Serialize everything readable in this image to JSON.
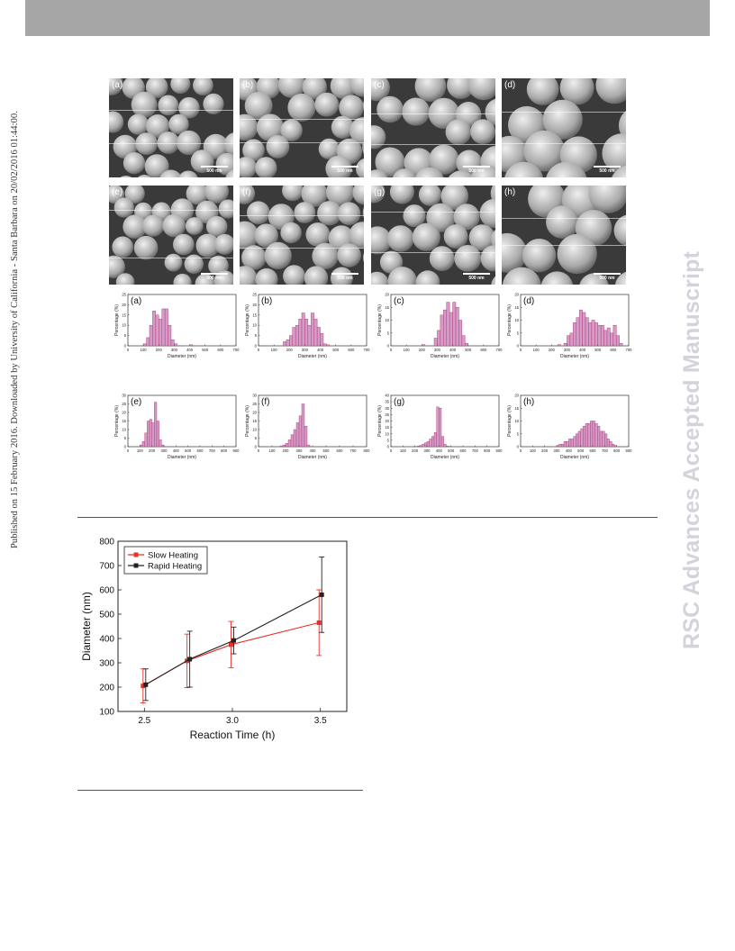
{
  "page": {
    "side_text": "Published on 15 February 2016. Downloaded by University of California - Santa Barbara on 20/02/2016 01:44:00.",
    "watermark": "RSC Advances Accepted Manuscript"
  },
  "sem_panels": [
    {
      "label": "(a)",
      "scale": "500 nm"
    },
    {
      "label": "(b)",
      "scale": "500 nm"
    },
    {
      "label": "(c)",
      "scale": "500 nm"
    },
    {
      "label": "(d)",
      "scale": "500 nm"
    },
    {
      "label": "(e)",
      "scale": "500 nm"
    },
    {
      "label": "(f)",
      "scale": "500 nm"
    },
    {
      "label": "(g)",
      "scale": "500 nm"
    },
    {
      "label": "(h)",
      "scale": "500 nm"
    }
  ],
  "colors": {
    "hist_fill": "#d49ac8",
    "hist_edge": "#b0306a",
    "slow": "#e8312b",
    "rapid": "#222222"
  },
  "chart_data": [
    {
      "type": "bar",
      "panel": "(a)",
      "xlabel": "Diameter (nm)",
      "ylabel": "Percentage (%)",
      "xlim": [
        0,
        700
      ],
      "ylim": [
        0,
        25
      ],
      "xticks": [
        0,
        100,
        200,
        300,
        400,
        500,
        600,
        700
      ],
      "yticks": [
        0,
        5,
        10,
        15,
        20,
        25
      ],
      "bin_width": 20,
      "x": [
        110,
        130,
        150,
        170,
        190,
        210,
        230,
        250,
        270,
        290,
        310,
        410
      ],
      "values": [
        1,
        4,
        10,
        17,
        15,
        13,
        18,
        18,
        10,
        3,
        1,
        0.5
      ]
    },
    {
      "type": "bar",
      "panel": "(b)",
      "xlabel": "Diameter (nm)",
      "ylabel": "Percentage (%)",
      "xlim": [
        0,
        700
      ],
      "ylim": [
        0,
        25
      ],
      "xticks": [
        0,
        100,
        200,
        300,
        400,
        500,
        600,
        700
      ],
      "yticks": [
        0,
        5,
        10,
        15,
        20,
        25
      ],
      "bin_width": 20,
      "x": [
        170,
        190,
        210,
        230,
        250,
        270,
        290,
        310,
        330,
        350,
        370,
        390,
        410,
        430,
        450
      ],
      "values": [
        2,
        3,
        5,
        9,
        10,
        13,
        16,
        13,
        10,
        16,
        13,
        9,
        6,
        1,
        0.5
      ]
    },
    {
      "type": "bar",
      "panel": "(c)",
      "xlabel": "Diameter (nm)",
      "ylabel": "Percentage (%)",
      "xlim": [
        0,
        700
      ],
      "ylim": [
        0,
        20
      ],
      "xticks": [
        0,
        100,
        200,
        300,
        400,
        500,
        600,
        700
      ],
      "yticks": [
        0,
        5,
        10,
        15,
        20
      ],
      "bin_width": 20,
      "x": [
        210,
        290,
        310,
        330,
        350,
        370,
        390,
        410,
        430,
        450,
        470,
        490
      ],
      "values": [
        0.5,
        3,
        6,
        12,
        14,
        17,
        13,
        17,
        15,
        10,
        4,
        1
      ]
    },
    {
      "type": "bar",
      "panel": "(d)",
      "xlabel": "Diameter (nm)",
      "ylabel": "Percentage (%)",
      "xlim": [
        0,
        700
      ],
      "ylim": [
        0,
        20
      ],
      "xticks": [
        0,
        100,
        200,
        300,
        400,
        500,
        600,
        700
      ],
      "yticks": [
        0,
        5,
        10,
        15,
        20
      ],
      "bin_width": 20,
      "x": [
        250,
        290,
        310,
        330,
        350,
        370,
        390,
        410,
        430,
        450,
        470,
        490,
        510,
        530,
        550,
        570,
        590,
        610,
        630,
        650
      ],
      "values": [
        0.5,
        1,
        4,
        5,
        9,
        11,
        14,
        13,
        11,
        9,
        10,
        9,
        8,
        8,
        6,
        7,
        5,
        8,
        4,
        1
      ]
    },
    {
      "type": "bar",
      "panel": "(e)",
      "xlabel": "Diameter (nm)",
      "ylabel": "Percentage (%)",
      "xlim": [
        0,
        900
      ],
      "ylim": [
        0,
        30
      ],
      "xticks": [
        0,
        100,
        200,
        300,
        400,
        500,
        600,
        700,
        800,
        900
      ],
      "yticks": [
        0,
        5,
        10,
        15,
        20,
        25,
        30
      ],
      "bin_width": 20,
      "x": [
        110,
        130,
        150,
        170,
        190,
        210,
        230,
        250,
        270,
        290
      ],
      "values": [
        1,
        3,
        8,
        15,
        16,
        14,
        26,
        15,
        4,
        1
      ]
    },
    {
      "type": "bar",
      "panel": "(f)",
      "xlabel": "Diameter (nm)",
      "ylabel": "Percentage (%)",
      "xlim": [
        0,
        800
      ],
      "ylim": [
        0,
        30
      ],
      "xticks": [
        0,
        100,
        200,
        300,
        400,
        500,
        600,
        700,
        800
      ],
      "yticks": [
        0,
        5,
        10,
        15,
        20,
        25,
        30
      ],
      "bin_width": 20,
      "x": [
        170,
        190,
        210,
        230,
        250,
        270,
        290,
        310,
        330,
        350,
        370
      ],
      "values": [
        0.5,
        1,
        2,
        4,
        7,
        10,
        14,
        18,
        25,
        12,
        1
      ]
    },
    {
      "type": "bar",
      "panel": "(g)",
      "xlabel": "Diameter (nm)",
      "ylabel": "Percentage (%)",
      "xlim": [
        0,
        900
      ],
      "ylim": [
        0,
        40
      ],
      "xticks": [
        0,
        100,
        200,
        300,
        400,
        500,
        600,
        700,
        800,
        900
      ],
      "yticks": [
        0,
        5,
        10,
        15,
        20,
        25,
        30,
        35,
        40
      ],
      "bin_width": 20,
      "x": [
        230,
        250,
        270,
        290,
        310,
        330,
        350,
        370,
        390,
        410,
        430,
        450,
        470
      ],
      "values": [
        0.5,
        1,
        2,
        3,
        4,
        6,
        8,
        11,
        31,
        30,
        8,
        2,
        0.5
      ]
    },
    {
      "type": "bar",
      "panel": "(h)",
      "xlabel": "Diameter (nm)",
      "ylabel": "Percentage (%)",
      "xlim": [
        0,
        900
      ],
      "ylim": [
        0,
        20
      ],
      "xticks": [
        0,
        100,
        200,
        300,
        400,
        500,
        600,
        700,
        800,
        900
      ],
      "yticks": [
        0,
        5,
        10,
        15,
        20
      ],
      "bin_width": 20,
      "x": [
        310,
        330,
        350,
        370,
        390,
        410,
        430,
        450,
        470,
        490,
        510,
        530,
        550,
        570,
        590,
        610,
        630,
        650,
        670,
        690,
        710,
        730,
        750,
        770,
        790
      ],
      "values": [
        0.5,
        1,
        1,
        2,
        2,
        3,
        3,
        4,
        5,
        6,
        7,
        8,
        9,
        9,
        10,
        10,
        9,
        8,
        6,
        6,
        5,
        3,
        2,
        1,
        0.5
      ]
    },
    {
      "type": "line",
      "panel": "main",
      "xlabel": "Reaction Time (h)",
      "ylabel": "Diameter (nm)",
      "xlim": [
        2.35,
        3.65
      ],
      "ylim": [
        100,
        800
      ],
      "xticks": [
        2.5,
        3.0,
        3.5
      ],
      "xtick_labels": [
        "2.5",
        "3.0",
        "3.5"
      ],
      "yticks": [
        100,
        200,
        300,
        400,
        500,
        600,
        700,
        800
      ],
      "legend": "top-left",
      "series": [
        {
          "name": "Slow Heating",
          "x": [
            2.5,
            2.75,
            3.0,
            3.5
          ],
          "values": [
            205,
            308,
            375,
            465
          ],
          "error": [
            70,
            110,
            95,
            135
          ]
        },
        {
          "name": "Rapid Heating",
          "x": [
            2.5,
            2.75,
            3.0,
            3.5
          ],
          "values": [
            210,
            315,
            392,
            580
          ],
          "error": [
            65,
            115,
            55,
            155
          ]
        }
      ]
    }
  ]
}
